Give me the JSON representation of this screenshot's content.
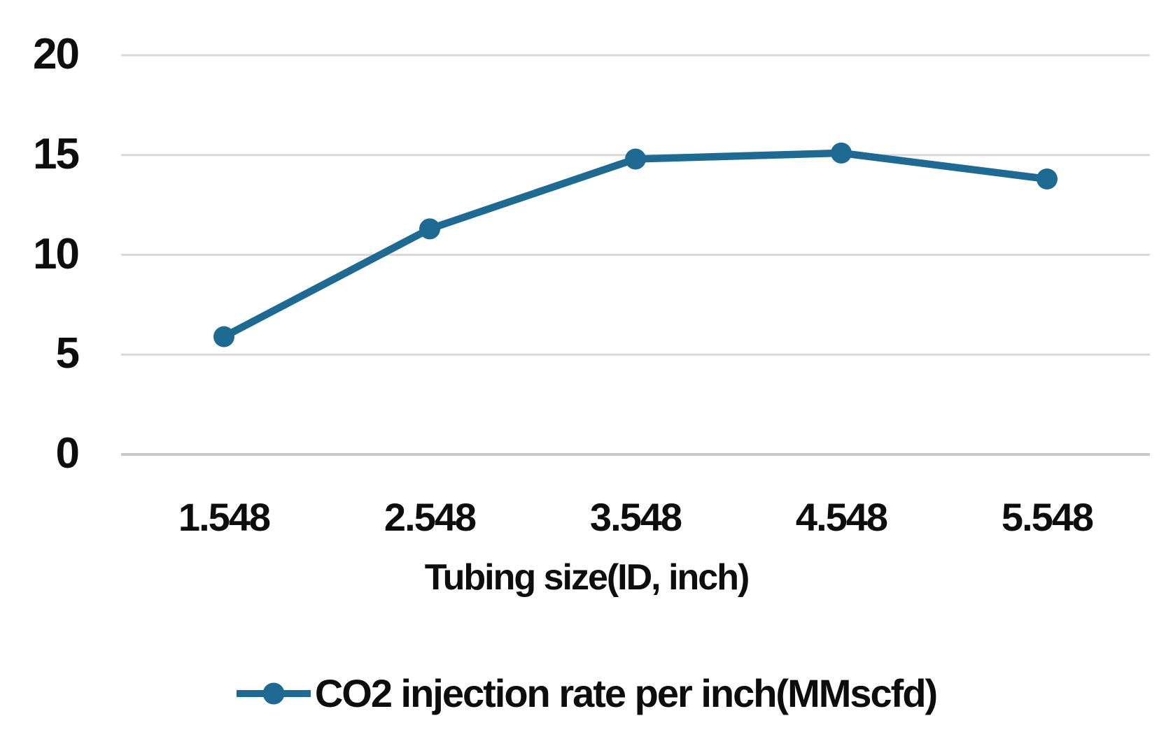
{
  "chart_data": {
    "type": "line",
    "title": "",
    "categories": [
      "1.548",
      "2.548",
      "3.548",
      "4.548",
      "5.548"
    ],
    "x_values": [
      1.548,
      2.548,
      3.548,
      4.548,
      5.548
    ],
    "series": [
      {
        "name": "CO2 injection rate per inch(MMscfd)",
        "values": [
          5.9,
          11.3,
          14.8,
          15.1,
          13.8
        ]
      }
    ],
    "xlabel": "Tubing size(ID, inch)",
    "ylabel": "",
    "ylim": [
      0,
      20
    ],
    "yticks": [
      0,
      5,
      10,
      15,
      20
    ],
    "grid": true,
    "legend_position": "bottom",
    "marker": "circle"
  },
  "style": {
    "line_color": "#1f6a93",
    "marker_color": "#1f6a93",
    "gridline_color": "#d9d9d9",
    "zero_line_color": "#c9c9c9",
    "text_color": "#0d0d0d",
    "background_color": "#ffffff"
  },
  "legend": {
    "label": "CO2 injection rate per inch(MMscfd)"
  },
  "axis": {
    "x_title": "Tubing size(ID, inch)",
    "y_tick_labels": [
      "0",
      "5",
      "10",
      "15",
      "20"
    ],
    "x_tick_labels": [
      "1.548",
      "2.548",
      "3.548",
      "4.548",
      "5.548"
    ]
  }
}
